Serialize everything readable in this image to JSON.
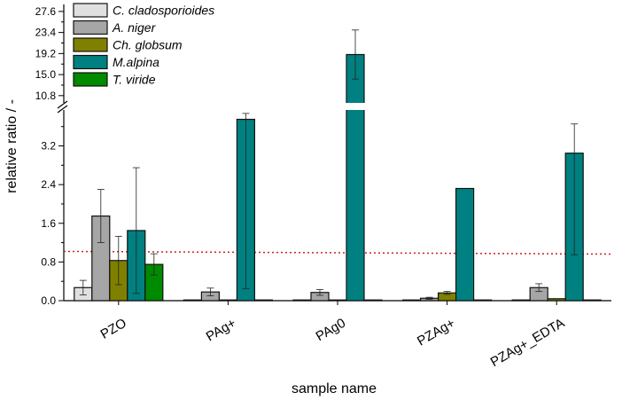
{
  "chart_data": {
    "type": "bar",
    "xlabel": "sample name",
    "ylabel": "relative ratio / -",
    "categories": [
      "PZO",
      "PAg+",
      "PAg0",
      "PZAg+",
      "PZAg+_EDTA"
    ],
    "series": [
      {
        "name": "C. cladosporioides",
        "color": "#e0e0e0",
        "values": [
          0.27,
          0.01,
          0.01,
          0.01,
          0.01
        ],
        "errors": [
          0.15,
          0.0,
          0.0,
          0.0,
          0.0
        ]
      },
      {
        "name": "A. niger",
        "color": "#a6a6a6",
        "values": [
          1.75,
          0.18,
          0.17,
          0.05,
          0.27
        ],
        "errors": [
          0.55,
          0.08,
          0.06,
          0.02,
          0.08
        ]
      },
      {
        "name": "Ch. globsum",
        "color": "#808000",
        "values": [
          0.83,
          0.01,
          0.01,
          0.16,
          0.04
        ],
        "errors": [
          0.5,
          0.0,
          0.0,
          0.03,
          0.0
        ]
      },
      {
        "name": "M.alpina",
        "color": "#008080",
        "values": [
          1.45,
          3.75,
          19.0,
          2.32,
          3.05
        ],
        "errors": [
          1.3,
          3.5,
          4.9,
          0.0,
          2.1
        ]
      },
      {
        "name": "T. viride",
        "color": "#008a00",
        "values": [
          0.75,
          0.01,
          0.01,
          0.01,
          0.01
        ],
        "errors": [
          0.22,
          0.0,
          0.0,
          0.0,
          0.0
        ]
      }
    ],
    "y_axis": {
      "broken": true,
      "lower_range": [
        0,
        4.2
      ],
      "lower_ticks": [
        "0.0",
        "0.8",
        "1.6",
        "2.4",
        "3.2"
      ],
      "upper_range": [
        9.0,
        29.0
      ],
      "upper_ticks": [
        "10.8",
        "15.0",
        "19.2",
        "23.4",
        "27.6"
      ]
    },
    "reference_line": {
      "value": 1.0,
      "style": "dotted",
      "color": "#d02020"
    },
    "legend_position": "top-left",
    "grid": false
  }
}
